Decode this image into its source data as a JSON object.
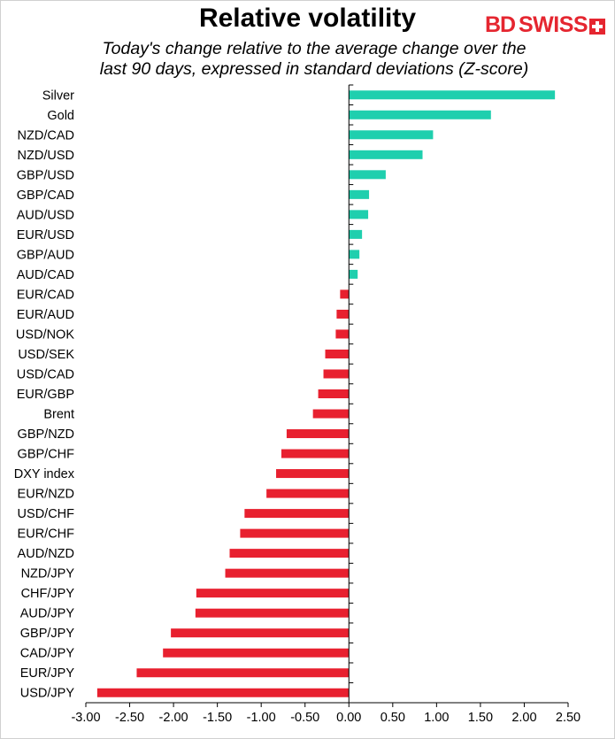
{
  "header": {
    "title": "Relative volatility",
    "subtitle_line1": "Today's change relative to the average change over the",
    "subtitle_line2": "last 90 days, expressed in standard deviations (Z-score)"
  },
  "logo": {
    "part1": "BD",
    "part2": "SWISS",
    "color": "#e52630"
  },
  "colors": {
    "positive": "#1fcfae",
    "negative": "#e8202f",
    "axis": "#000000"
  },
  "chart_data": {
    "type": "bar",
    "orientation": "horizontal",
    "title": "Relative volatility",
    "subtitle": "Today's change relative to the average change over the last 90 days, expressed in standard deviations (Z-score)",
    "categories": [
      "Silver",
      "Gold",
      "NZD/CAD",
      "NZD/USD",
      "GBP/USD",
      "GBP/CAD",
      "AUD/USD",
      "EUR/USD",
      "GBP/AUD",
      "AUD/CAD",
      "EUR/CAD",
      "EUR/AUD",
      "USD/NOK",
      "USD/SEK",
      "USD/CAD",
      "EUR/GBP",
      "Brent",
      "GBP/NZD",
      "GBP/CHF",
      "DXY index",
      "EUR/NZD",
      "USD/CHF",
      "EUR/CHF",
      "AUD/NZD",
      "NZD/JPY",
      "CHF/JPY",
      "AUD/JPY",
      "GBP/JPY",
      "CAD/JPY",
      "EUR/JPY",
      "USD/JPY"
    ],
    "values": [
      2.35,
      1.62,
      0.96,
      0.84,
      0.42,
      0.23,
      0.22,
      0.15,
      0.12,
      0.1,
      -0.1,
      -0.14,
      -0.15,
      -0.27,
      -0.29,
      -0.35,
      -0.41,
      -0.71,
      -0.77,
      -0.83,
      -0.94,
      -1.19,
      -1.24,
      -1.36,
      -1.41,
      -1.74,
      -1.75,
      -2.03,
      -2.12,
      -2.42,
      -2.87
    ],
    "xticks": [
      "-3.00",
      "-2.50",
      "-2.00",
      "-1.50",
      "-1.00",
      "-0.50",
      "0.00",
      "0.50",
      "1.00",
      "1.50",
      "2.00",
      "2.50"
    ],
    "xlim": [
      -3.0,
      2.5
    ],
    "xlabel": "",
    "ylabel": "",
    "grid": false,
    "legend": "none"
  }
}
